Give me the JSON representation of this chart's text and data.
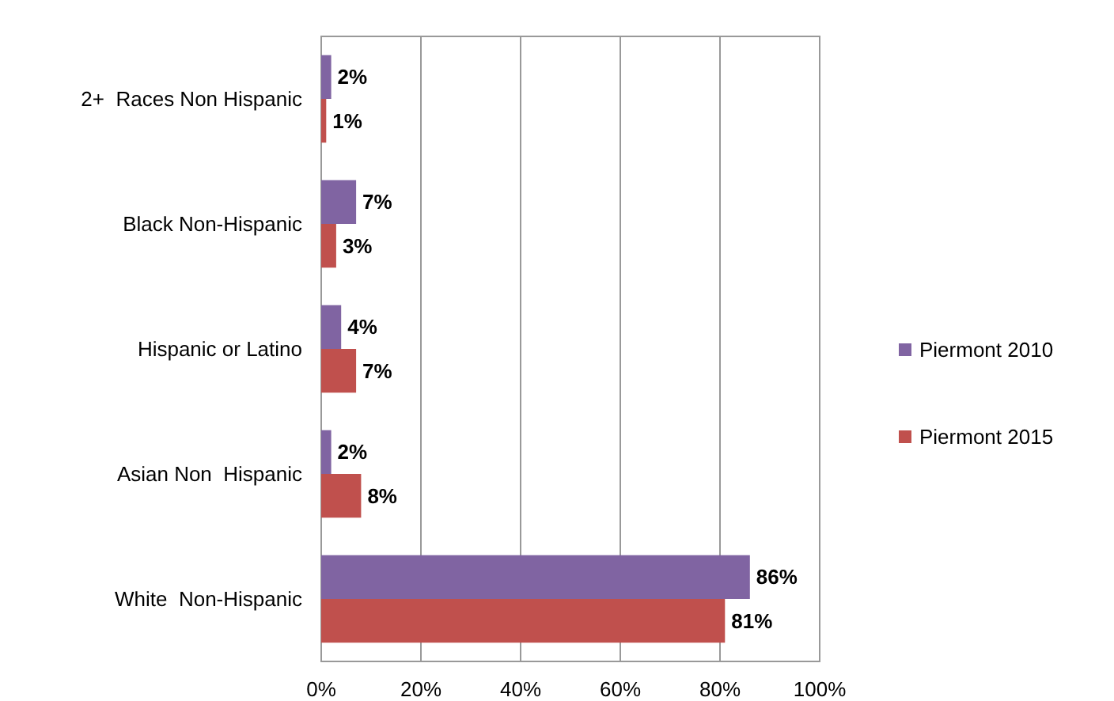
{
  "chart_data": {
    "type": "bar",
    "orientation": "horizontal",
    "categories": [
      "2+  Races Non Hispanic",
      "Black Non-Hispanic",
      "Hispanic or Latino",
      "Asian Non  Hispanic",
      "White  Non-Hispanic"
    ],
    "series": [
      {
        "name": "Piermont 2010",
        "color": "#8064a2",
        "values": [
          2,
          7,
          4,
          2,
          86
        ],
        "value_labels": [
          "2%",
          "7%",
          "4%",
          "2%",
          "86%"
        ]
      },
      {
        "name": "Piermont 2015",
        "color": "#c0504d",
        "values": [
          1,
          3,
          7,
          8,
          81
        ],
        "value_labels": [
          "1%",
          "3%",
          "7%",
          "8%",
          "81%"
        ]
      }
    ],
    "xlim": [
      0,
      100
    ],
    "xticks": [
      {
        "value": 0,
        "label": "0%"
      },
      {
        "value": 20,
        "label": "20%"
      },
      {
        "value": 40,
        "label": "40%"
      },
      {
        "value": 60,
        "label": "60%"
      },
      {
        "value": 80,
        "label": "80%"
      },
      {
        "value": 100,
        "label": "100%"
      }
    ],
    "grid": "x",
    "legend": "right"
  }
}
